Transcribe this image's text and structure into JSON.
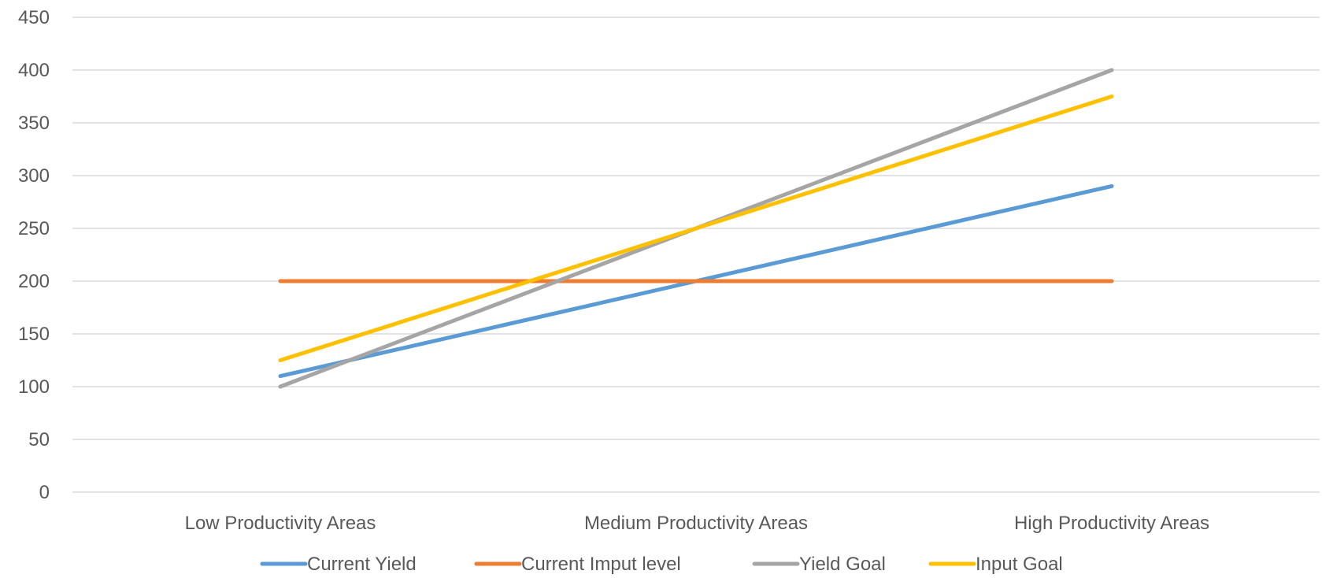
{
  "chart_data": {
    "type": "line",
    "title": "",
    "xlabel": "",
    "ylabel": "",
    "categories": [
      "Low Productivity Areas",
      "Medium Productivity Areas",
      "High Productivity Areas"
    ],
    "ylim": [
      0,
      450
    ],
    "yticks": [
      0,
      50,
      100,
      150,
      200,
      250,
      300,
      350,
      400,
      450
    ],
    "grid": true,
    "legend_position": "bottom",
    "series": [
      {
        "name": "Current Yield",
        "values": [
          110,
          200,
          290
        ],
        "color": "#5B9BD5"
      },
      {
        "name": "Current Imput level",
        "values": [
          200,
          200,
          200
        ],
        "color": "#ED7D31"
      },
      {
        "name": "Yield Goal",
        "values": [
          100,
          250,
          400
        ],
        "color": "#A5A5A5"
      },
      {
        "name": "Input Goal",
        "values": [
          125,
          250,
          375
        ],
        "color": "#FFC000"
      }
    ]
  }
}
